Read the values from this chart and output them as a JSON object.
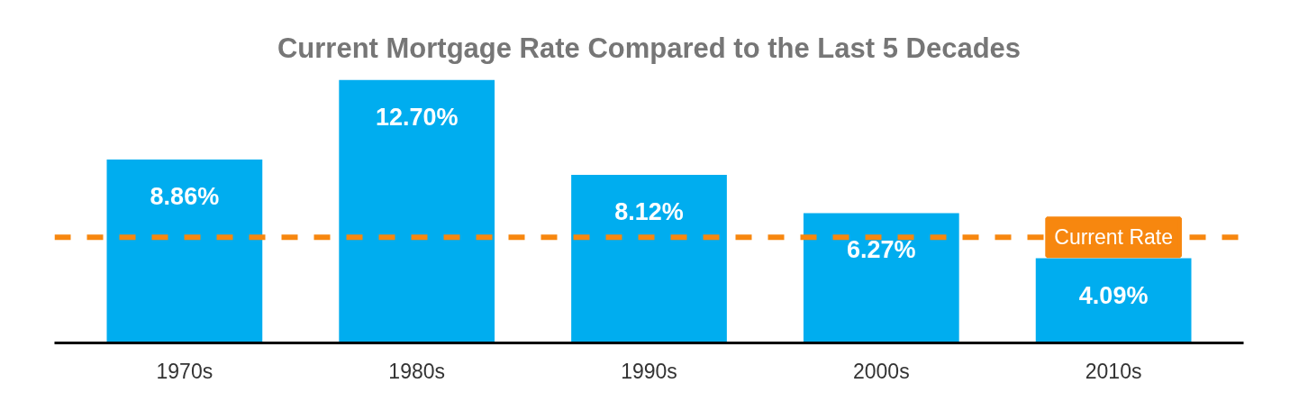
{
  "chart_data": {
    "type": "bar",
    "title": "Current Mortgage Rate Compared to the Last 5 Decades",
    "categories": [
      "1970s",
      "1980s",
      "1990s",
      "2000s",
      "2010s"
    ],
    "values": [
      8.86,
      12.7,
      8.12,
      6.27,
      4.09
    ],
    "color": "#00adef",
    "value_labels": [
      "8.86%",
      "12.70%",
      "8.12%",
      "6.27%",
      "4.09%"
    ],
    "ref_lines": [
      {
        "axis": "y",
        "value": 5.1,
        "label": "Current Rate",
        "color": "#f7870f",
        "line_style": "dashed"
      }
    ],
    "grid": false
  }
}
